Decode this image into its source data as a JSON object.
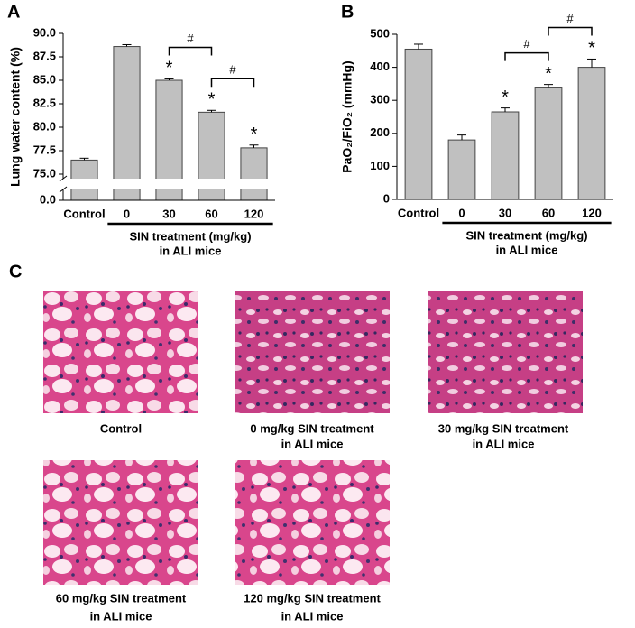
{
  "chart_data": [
    {
      "type": "bar",
      "panel_label": "A",
      "y_label": "Lung water content (%)",
      "categories": [
        "Control",
        "0",
        "30",
        "60",
        "120"
      ],
      "values": [
        76.5,
        88.6,
        85.0,
        81.6,
        77.8
      ],
      "errors": [
        0.2,
        0.2,
        0.15,
        0.2,
        0.3
      ],
      "markers": [
        null,
        null,
        "*",
        "*",
        "*"
      ],
      "brackets": [
        {
          "label": "#",
          "from": "30",
          "to": "60"
        },
        {
          "label": "#",
          "from": "60",
          "to": "120"
        }
      ],
      "group_label": [
        "SIN treatment (mg/kg)",
        "in ALI mice"
      ],
      "group_from": "0",
      "group_to": "120",
      "color": "#c0c0c0",
      "axis_break": true,
      "ylim": [
        75,
        90
      ],
      "yticks": [
        {
          "value": 0,
          "label": "0.0"
        },
        {
          "value": 75,
          "label": "75.0"
        },
        {
          "value": 77.5,
          "label": "77.5"
        },
        {
          "value": 80,
          "label": "80.0"
        },
        {
          "value": 82.5,
          "label": "82.5"
        },
        {
          "value": 85,
          "label": "85.0"
        },
        {
          "value": 87.5,
          "label": "87.5"
        },
        {
          "value": 90,
          "label": "90.0"
        }
      ]
    },
    {
      "type": "bar",
      "panel_label": "B",
      "y_label": "PaO₂/FiO₂ (mmHg)",
      "categories": [
        "Control",
        "0",
        "30",
        "60",
        "120"
      ],
      "values": [
        455,
        180,
        265,
        340,
        400
      ],
      "errors": [
        15,
        15,
        12,
        8,
        25
      ],
      "markers": [
        null,
        null,
        "*",
        "*",
        "*"
      ],
      "brackets": [
        {
          "label": "#",
          "from": "30",
          "to": "60"
        },
        {
          "label": "#",
          "from": "60",
          "to": "120"
        }
      ],
      "group_label": [
        "SIN treatment (mg/kg)",
        "in ALI mice"
      ],
      "group_from": "0",
      "group_to": "120",
      "color": "#c0c0c0",
      "axis_break": false,
      "ylim": [
        0,
        500
      ],
      "yticks": [
        0,
        100,
        200,
        300,
        400,
        500
      ]
    }
  ],
  "micrographs": {
    "panel_label": "C",
    "captions": [
      [
        "Control"
      ],
      [
        "0 mg/kg SIN treatment",
        "in ALI mice"
      ],
      [
        "30 mg/kg SIN treatment",
        "in ALI mice"
      ],
      [
        "60 mg/kg SIN treatment",
        "in ALI mice"
      ],
      [
        "120 mg/kg SIN treatment",
        "in ALI mice"
      ]
    ]
  }
}
